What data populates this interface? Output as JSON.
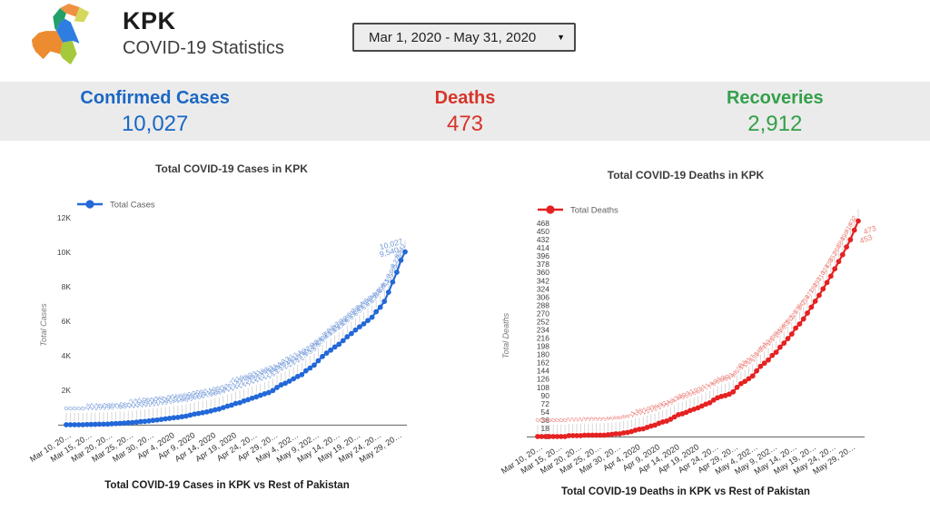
{
  "header": {
    "title": "KPK",
    "subtitle": "COVID-19 Statistics",
    "date_range": "Mar 1, 2020 - May 31, 2020",
    "logo": "pakistan-province-map",
    "logo_colors": [
      "#ec8b2f",
      "#a6c83b",
      "#2e7de0",
      "#22a068",
      "#ef9143",
      "#d4d95c"
    ]
  },
  "stats": [
    {
      "label": "Confirmed Cases",
      "value": "10,027",
      "color": "#1b67c4"
    },
    {
      "label": "Deaths",
      "value": "473",
      "color": "#d7352b"
    },
    {
      "label": "Recoveries",
      "value": "2,912",
      "color": "#34a04a"
    }
  ],
  "chart_data": [
    {
      "type": "line",
      "title": "Total COVID-19 Cases in KPK",
      "legend": "Total Cases",
      "ylabel": "Total Cases",
      "series_color": "#2368d8",
      "annotation_color": "#7097d8",
      "ylim": [
        0,
        12000
      ],
      "y_tick_labels": [
        "12K",
        "10K",
        "8K",
        "6K",
        "4K",
        "2K"
      ],
      "y_tick_values": [
        12000,
        10000,
        8000,
        6000,
        4000,
        2000
      ],
      "x_tick_labels": [
        "Mar 10, 20…",
        "Mar 15, 20…",
        "Mar 20, 20…",
        "Mar 25, 20…",
        "Mar 30, 20…",
        "Apr 4, 2020",
        "Apr 9, 2020",
        "Apr 14, 2020",
        "Apr 19, 2020",
        "Apr 24, 20…",
        "Apr 29, 20…",
        "May 4, 202…",
        "May 9, 202…",
        "May 14, 20…",
        "May 19, 20…",
        "May 24, 20…",
        "May 29, 20…"
      ],
      "x_tick_every": 5,
      "values": [
        0,
        0,
        0,
        0,
        0,
        15,
        17,
        23,
        31,
        33,
        38,
        55,
        71,
        80,
        95,
        117,
        123,
        147,
        180,
        195,
        221,
        253,
        276,
        311,
        343,
        372,
        405,
        426,
        465,
        500,
        560,
        620,
        656,
        697,
        744,
        800,
        865,
        912,
        993,
        1077,
        1137,
        1235,
        1276,
        1380,
        1453,
        1541,
        1616,
        1708,
        1793,
        1864,
        1984,
        2160,
        2313,
        2407,
        2527,
        2664,
        2799,
        2907,
        3129,
        3288,
        3456,
        3712,
        3956,
        4155,
        4327,
        4509,
        4669,
        4875,
        5102,
        5288,
        5494,
        5678,
        5849,
        6046,
        6230,
        6554,
        6815,
        7155,
        7685,
        8276,
        8842,
        9540,
        10027
      ]
    },
    {
      "type": "line",
      "title": "Total COVID-19 Deaths in KPK",
      "legend": "Total Deaths",
      "ylabel": "Total Deaths",
      "series_color": "#e52222",
      "annotation_color": "#ec8078",
      "ylim": [
        0,
        468
      ],
      "y_tick_labels": [
        "468",
        "450",
        "432",
        "414",
        "396",
        "378",
        "360",
        "342",
        "324",
        "306",
        "288",
        "270",
        "252",
        "234",
        "216",
        "198",
        "180",
        "162",
        "144",
        "126",
        "108",
        "90",
        "72",
        "54",
        "36",
        "18",
        "0"
      ],
      "y_tick_values": [
        468,
        450,
        432,
        414,
        396,
        378,
        360,
        342,
        324,
        306,
        288,
        270,
        252,
        234,
        216,
        198,
        180,
        162,
        144,
        126,
        108,
        90,
        72,
        54,
        36,
        18,
        0
      ],
      "x_tick_labels": [
        "Mar 10, 20…",
        "Mar 15, 20…",
        "Mar 20, 20…",
        "Mar 25, 20…",
        "Mar 30, 20…",
        "Apr 4, 2020",
        "Apr 9, 2020",
        "Apr 14, 2020",
        "Apr 19, 2020",
        "Apr 24, 20…",
        "Apr 29, 20…",
        "May 4, 202…",
        "May 9, 202…",
        "May 14, 20…",
        "May 19, 20…",
        "May 24, 20…",
        "May 29, 20…"
      ],
      "x_tick_every": 5,
      "values": [
        0,
        0,
        0,
        0,
        0,
        0,
        0,
        0,
        2,
        2,
        2,
        2,
        3,
        3,
        3,
        3,
        3,
        3,
        4,
        5,
        6,
        6,
        8,
        9,
        11,
        14,
        16,
        17,
        20,
        23,
        25,
        29,
        32,
        34,
        38,
        43,
        48,
        50,
        53,
        57,
        60,
        63,
        67,
        71,
        74,
        80,
        85,
        88,
        90,
        93,
        98,
        108,
        116,
        121,
        127,
        133,
        144,
        154,
        161,
        168,
        178,
        185,
        196,
        205,
        215,
        225,
        238,
        247,
        258,
        271,
        284,
        297,
        310,
        324,
        338,
        352,
        368,
        384,
        399,
        416,
        432,
        453,
        473
      ]
    }
  ],
  "bottom_titles": [
    "Total COVID-19 Cases in KPK vs Rest of Pakistan",
    "Total COVID-19 Deaths in KPK vs Rest of Pakistan"
  ]
}
